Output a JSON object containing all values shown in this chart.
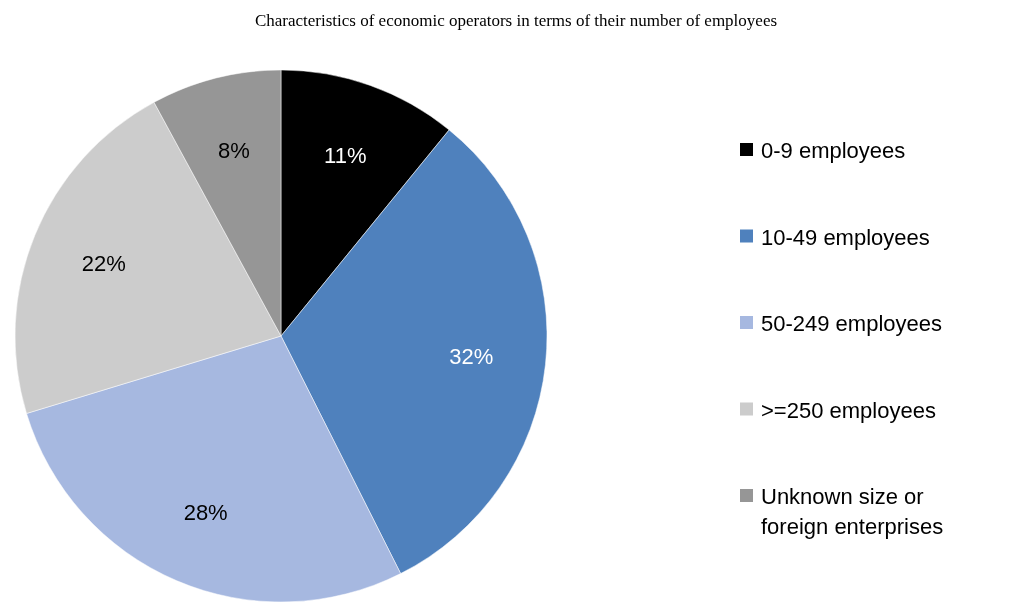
{
  "chart_data": {
    "type": "pie",
    "title": "Characteristics of economic operators in terms of their number of employees",
    "categories": [
      "0-9 employees",
      "10-49 employees",
      "50-249 employees",
      ">=250 employees",
      "Unknown size or foreign enterprises"
    ],
    "values": [
      11,
      32,
      28,
      22,
      8
    ],
    "value_labels": [
      "11%",
      "32%",
      "28%",
      "22%",
      "8%"
    ],
    "colors": [
      "#000000",
      "#4f81bd",
      "#a6b8e0",
      "#cccccc",
      "#969696"
    ],
    "legend": "right"
  }
}
